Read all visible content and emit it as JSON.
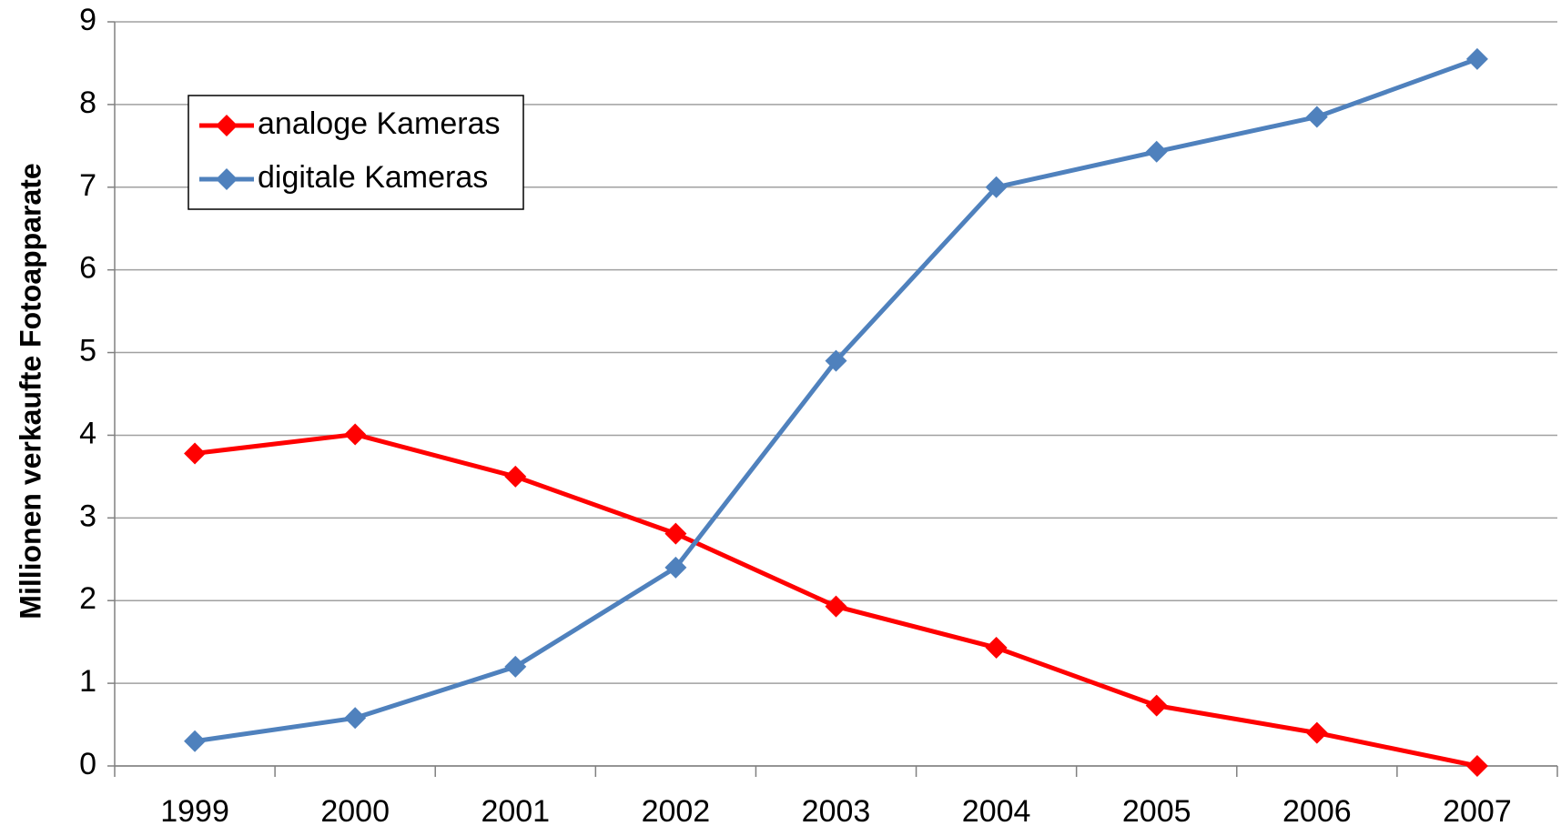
{
  "chart_data": {
    "type": "line",
    "y_label": "Millionen verkaufte Fotoapparate",
    "categories": [
      "1999",
      "2000",
      "2001",
      "2002",
      "2003",
      "2004",
      "2005",
      "2006",
      "2007"
    ],
    "series": [
      {
        "name": "analoge Kameras",
        "color": "#ff0000",
        "values": [
          3.78,
          4.01,
          3.5,
          2.81,
          1.93,
          1.43,
          0.73,
          0.4,
          0.0
        ]
      },
      {
        "name": "digitale Kameras",
        "color": "#4f81bd",
        "values": [
          0.3,
          0.58,
          1.2,
          2.4,
          4.9,
          7.0,
          7.43,
          7.85,
          8.55
        ]
      }
    ],
    "ylim": [
      0,
      9
    ],
    "yticks": [
      0,
      1,
      2,
      3,
      4,
      5,
      6,
      7,
      8,
      9
    ],
    "grid": true,
    "legend": "upper left"
  }
}
